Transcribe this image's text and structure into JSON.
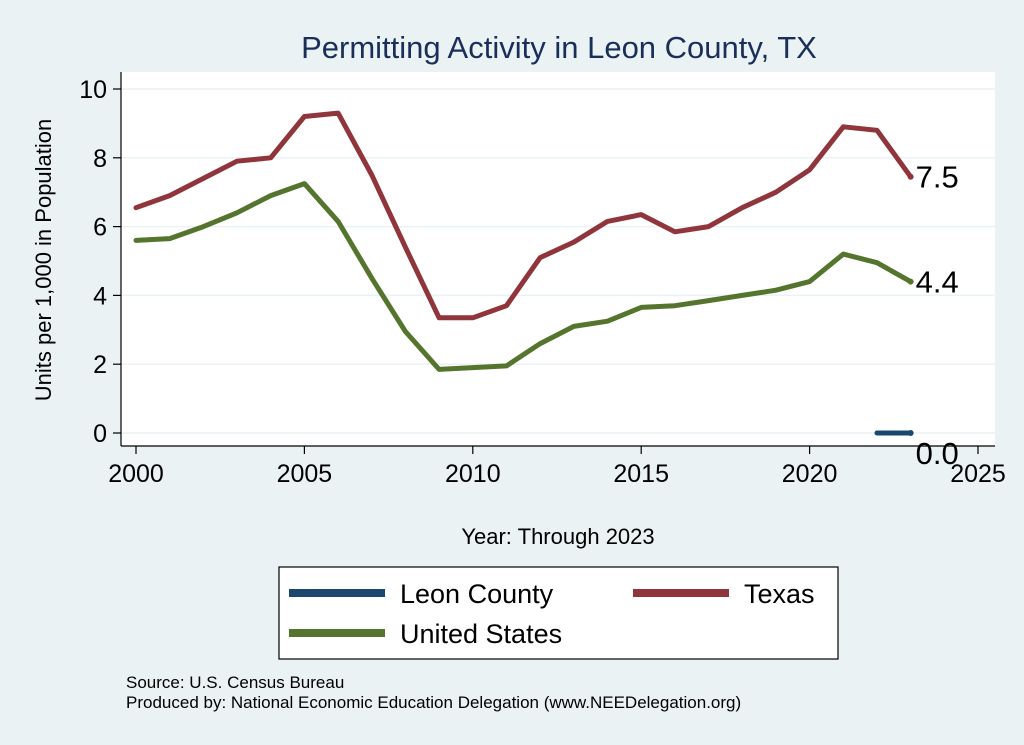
{
  "chart_data": {
    "type": "line",
    "title": "Permitting Activity in Leon County, TX",
    "xlabel": "Year: Through 2023",
    "ylabel": "Units per 1,000 in Population",
    "xlim": [
      2000,
      2025
    ],
    "ylim": [
      0,
      10
    ],
    "xticks": [
      2000,
      2005,
      2010,
      2015,
      2020,
      2025
    ],
    "yticks": [
      0,
      2,
      4,
      6,
      8,
      10
    ],
    "grid": true,
    "legend_position": "bottom",
    "series": [
      {
        "name": "Leon County",
        "color": "#1a476f",
        "x": [
          2022,
          2023
        ],
        "y": [
          0.0,
          0.0
        ],
        "end_label": "0.0"
      },
      {
        "name": "Texas",
        "color": "#90353b",
        "x": [
          2000,
          2001,
          2002,
          2003,
          2004,
          2005,
          2006,
          2007,
          2008,
          2009,
          2010,
          2011,
          2012,
          2013,
          2014,
          2015,
          2016,
          2017,
          2018,
          2019,
          2020,
          2021,
          2022,
          2023
        ],
        "y": [
          6.55,
          6.9,
          7.4,
          7.9,
          8.0,
          9.2,
          9.3,
          7.5,
          5.4,
          3.35,
          3.35,
          3.7,
          5.1,
          5.55,
          6.15,
          6.35,
          5.85,
          6.0,
          6.55,
          7.0,
          7.65,
          8.9,
          8.8,
          7.45
        ],
        "end_label": "7.5"
      },
      {
        "name": "United States",
        "color": "#55752f",
        "x": [
          2000,
          2001,
          2002,
          2003,
          2004,
          2005,
          2006,
          2007,
          2008,
          2009,
          2010,
          2011,
          2012,
          2013,
          2014,
          2015,
          2016,
          2017,
          2018,
          2019,
          2020,
          2021,
          2022,
          2023
        ],
        "y": [
          5.6,
          5.65,
          6.0,
          6.4,
          6.9,
          7.25,
          6.15,
          4.5,
          2.95,
          1.85,
          1.9,
          1.95,
          2.6,
          3.1,
          3.25,
          3.65,
          3.7,
          3.85,
          4.0,
          4.15,
          4.4,
          5.2,
          4.95,
          4.4
        ],
        "end_label": "4.4"
      }
    ]
  },
  "notes": {
    "source": "Source: U.S. Census Bureau",
    "produced_by": "Produced by: National Economic Education Delegation (www.NEEDelegation.org)"
  }
}
